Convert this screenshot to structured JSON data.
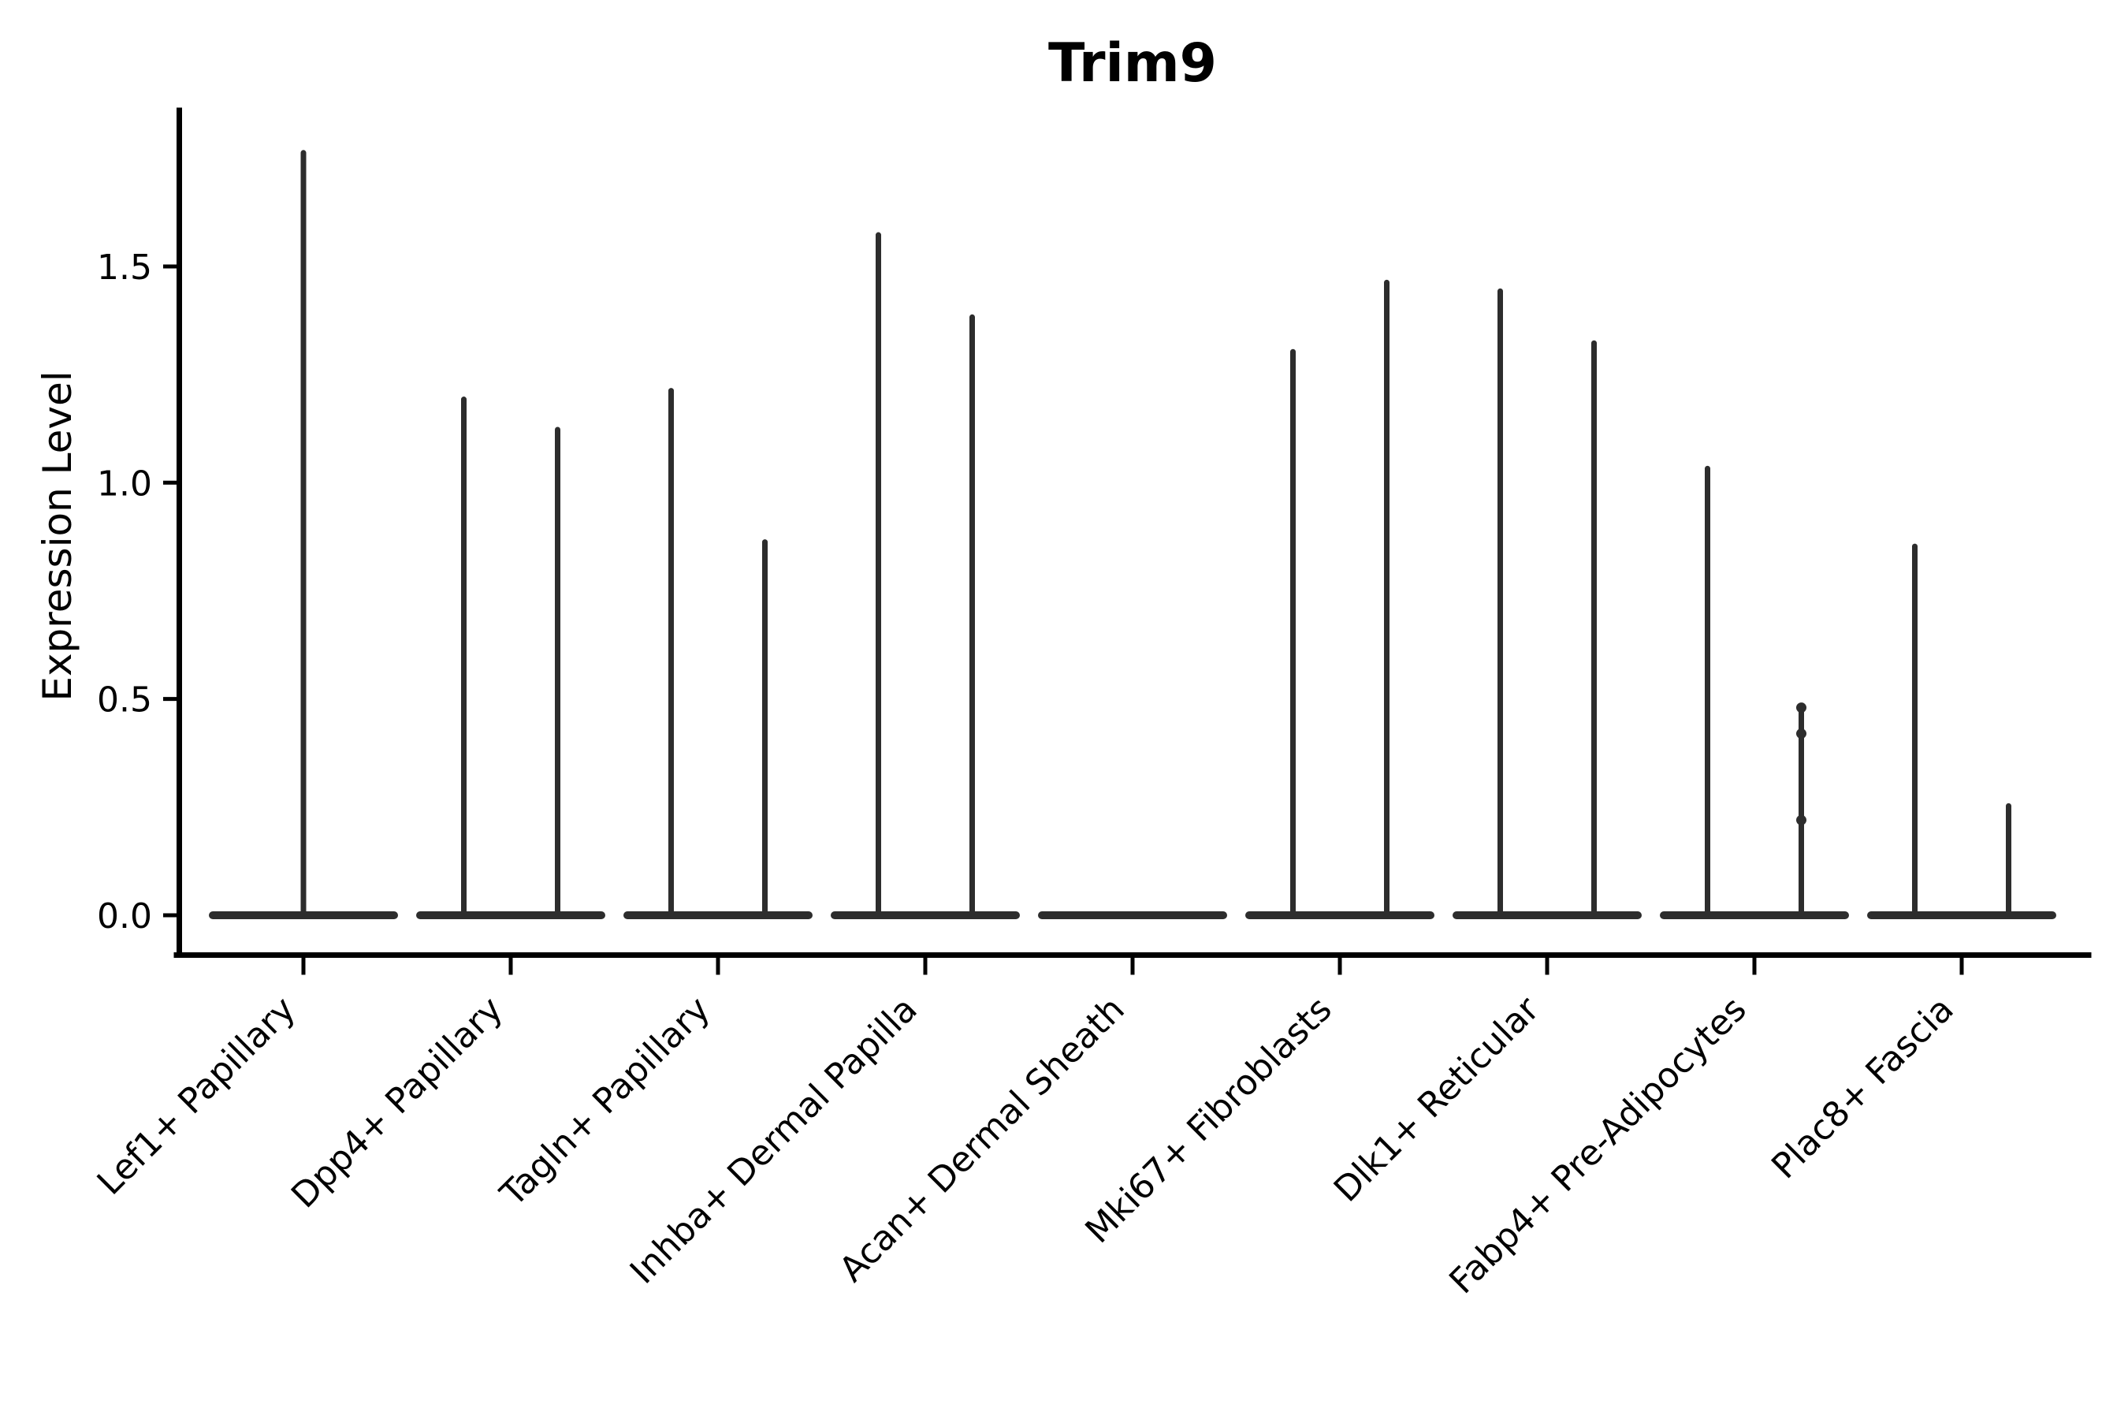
{
  "figure": {
    "background": "#ffffff"
  },
  "chart_data": {
    "type": "violin",
    "title": "Trim9",
    "xlabel": "",
    "ylabel": "Expression Level",
    "yticks": [
      0.0,
      0.5,
      1.0,
      1.5
    ],
    "ytick_labels": [
      "0.0",
      "0.5",
      "1.0",
      "1.5"
    ],
    "ylim": [
      -0.09,
      1.86
    ],
    "grid": false,
    "legend": "none",
    "violin_color": "#2d2d2d",
    "axis_color": "#000000",
    "categories": [
      "Lef1+ Papillary",
      "Dpp4+ Papillary",
      "Tagln+ Papillary",
      "Inhba+ Dermal Papilla",
      "Acan+ Dermal Sheath",
      "Mki67+ Fibroblasts",
      "Dlk1+ Reticular",
      "Fabp4+ Pre-Adipocytes",
      "Plac8+ Fascia"
    ],
    "violins": [
      {
        "category": "Lef1+ Papillary",
        "layout": "single",
        "max_values": [
          1.77
        ],
        "bumps": [
          []
        ]
      },
      {
        "category": "Dpp4+ Papillary",
        "layout": "pair",
        "max_values": [
          1.2,
          1.13
        ],
        "bumps": [
          [],
          []
        ]
      },
      {
        "category": "Tagln+ Papillary",
        "layout": "pair",
        "max_values": [
          1.22,
          0.87
        ],
        "bumps": [
          [],
          []
        ]
      },
      {
        "category": "Inhba+ Dermal Papilla",
        "layout": "pair",
        "max_values": [
          1.58,
          1.39
        ],
        "bumps": [
          [],
          []
        ]
      },
      {
        "category": "Acan+ Dermal Sheath",
        "layout": "single",
        "max_values": [
          0.0
        ],
        "bumps": [
          []
        ]
      },
      {
        "category": "Mki67+ Fibroblasts",
        "layout": "pair",
        "max_values": [
          1.31,
          1.47
        ],
        "bumps": [
          [],
          []
        ]
      },
      {
        "category": "Dlk1+ Reticular",
        "layout": "pair",
        "max_values": [
          1.45,
          1.33
        ],
        "bumps": [
          [],
          []
        ]
      },
      {
        "category": "Fabp4+ Pre-Adipocytes",
        "layout": "pair",
        "max_values": [
          1.04,
          0.48
        ],
        "bumps": [
          [],
          [
            0.48,
            0.42,
            0.22
          ]
        ]
      },
      {
        "category": "Plac8+ Fascia",
        "layout": "pair",
        "max_values": [
          0.86,
          0.26
        ],
        "bumps": [
          [],
          []
        ]
      }
    ]
  }
}
